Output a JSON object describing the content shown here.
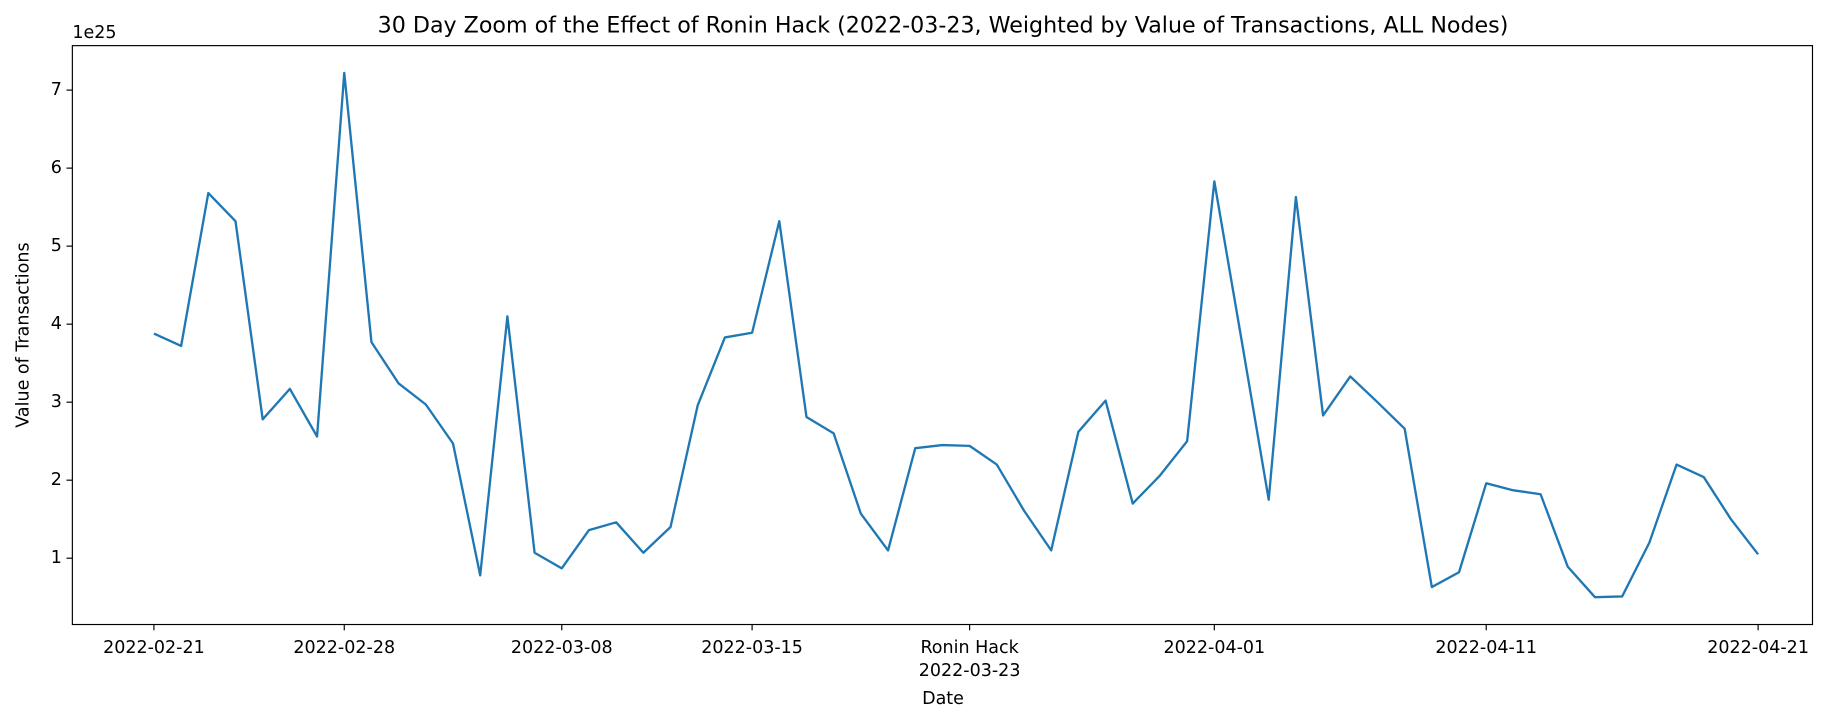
{
  "chart_data": {
    "type": "line",
    "title": "30 Day Zoom of the Effect of Ronin Hack (2022-03-23, Weighted by Value of Transactions, ALL Nodes)",
    "x_label": "Date",
    "y_label": "Value of Transactions",
    "y_offset_text": "1e25",
    "x": [
      "2022-02-21",
      "2022-02-22",
      "2022-02-23",
      "2022-02-24",
      "2022-02-25",
      "2022-02-26",
      "2022-02-27",
      "2022-02-28",
      "2022-03-01",
      "2022-03-02",
      "2022-03-03",
      "2022-03-04",
      "2022-03-05",
      "2022-03-06",
      "2022-03-07",
      "2022-03-08",
      "2022-03-09",
      "2022-03-10",
      "2022-03-11",
      "2022-03-12",
      "2022-03-13",
      "2022-03-14",
      "2022-03-15",
      "2022-03-16",
      "2022-03-17",
      "2022-03-18",
      "2022-03-19",
      "2022-03-20",
      "2022-03-21",
      "2022-03-22",
      "2022-03-23",
      "2022-03-24",
      "2022-03-25",
      "2022-03-26",
      "2022-03-27",
      "2022-03-28",
      "2022-03-29",
      "2022-03-30",
      "2022-03-31",
      "2022-04-01",
      "2022-04-02",
      "2022-04-03",
      "2022-04-04",
      "2022-04-05",
      "2022-04-06",
      "2022-04-07",
      "2022-04-08",
      "2022-04-09",
      "2022-04-10",
      "2022-04-11",
      "2022-04-12",
      "2022-04-13",
      "2022-04-14",
      "2022-04-15",
      "2022-04-16",
      "2022-04-17",
      "2022-04-18",
      "2022-04-19",
      "2022-04-20",
      "2022-04-21"
    ],
    "series": [
      {
        "name": "Value of Transactions",
        "color": "#1f77b4",
        "values": [
          3.88,
          3.72,
          5.68,
          5.32,
          2.78,
          3.17,
          2.56,
          7.22,
          3.77,
          3.24,
          2.97,
          2.47,
          0.78,
          4.1,
          1.07,
          0.87,
          1.36,
          1.46,
          1.07,
          1.4,
          2.96,
          3.83,
          3.89,
          5.32,
          2.81,
          2.6,
          1.57,
          1.1,
          2.41,
          2.45,
          2.44,
          2.2,
          1.61,
          1.1,
          2.62,
          3.02,
          1.7,
          2.06,
          2.5,
          5.83,
          3.8,
          1.75,
          5.63,
          2.83,
          3.33,
          3.0,
          2.66,
          0.63,
          0.82,
          1.96,
          1.87,
          1.82,
          0.89,
          0.5,
          0.51,
          1.2,
          2.2,
          2.04,
          1.5,
          1.05
        ]
      }
    ],
    "xlim": [
      "2022-02-18",
      "2022-04-23"
    ],
    "xticks": [
      "2022-02-21",
      "2022-02-28",
      "2022-03-08",
      "2022-03-15",
      {
        "value": "2022-03-23",
        "label": "Ronin Hack\n2022-03-23"
      },
      "2022-04-01",
      "2022-04-11",
      "2022-04-21"
    ],
    "ylim": [
      0.15,
      7.57
    ],
    "yticks": [
      1,
      2,
      3,
      4,
      5,
      6,
      7
    ],
    "grid": false
  }
}
